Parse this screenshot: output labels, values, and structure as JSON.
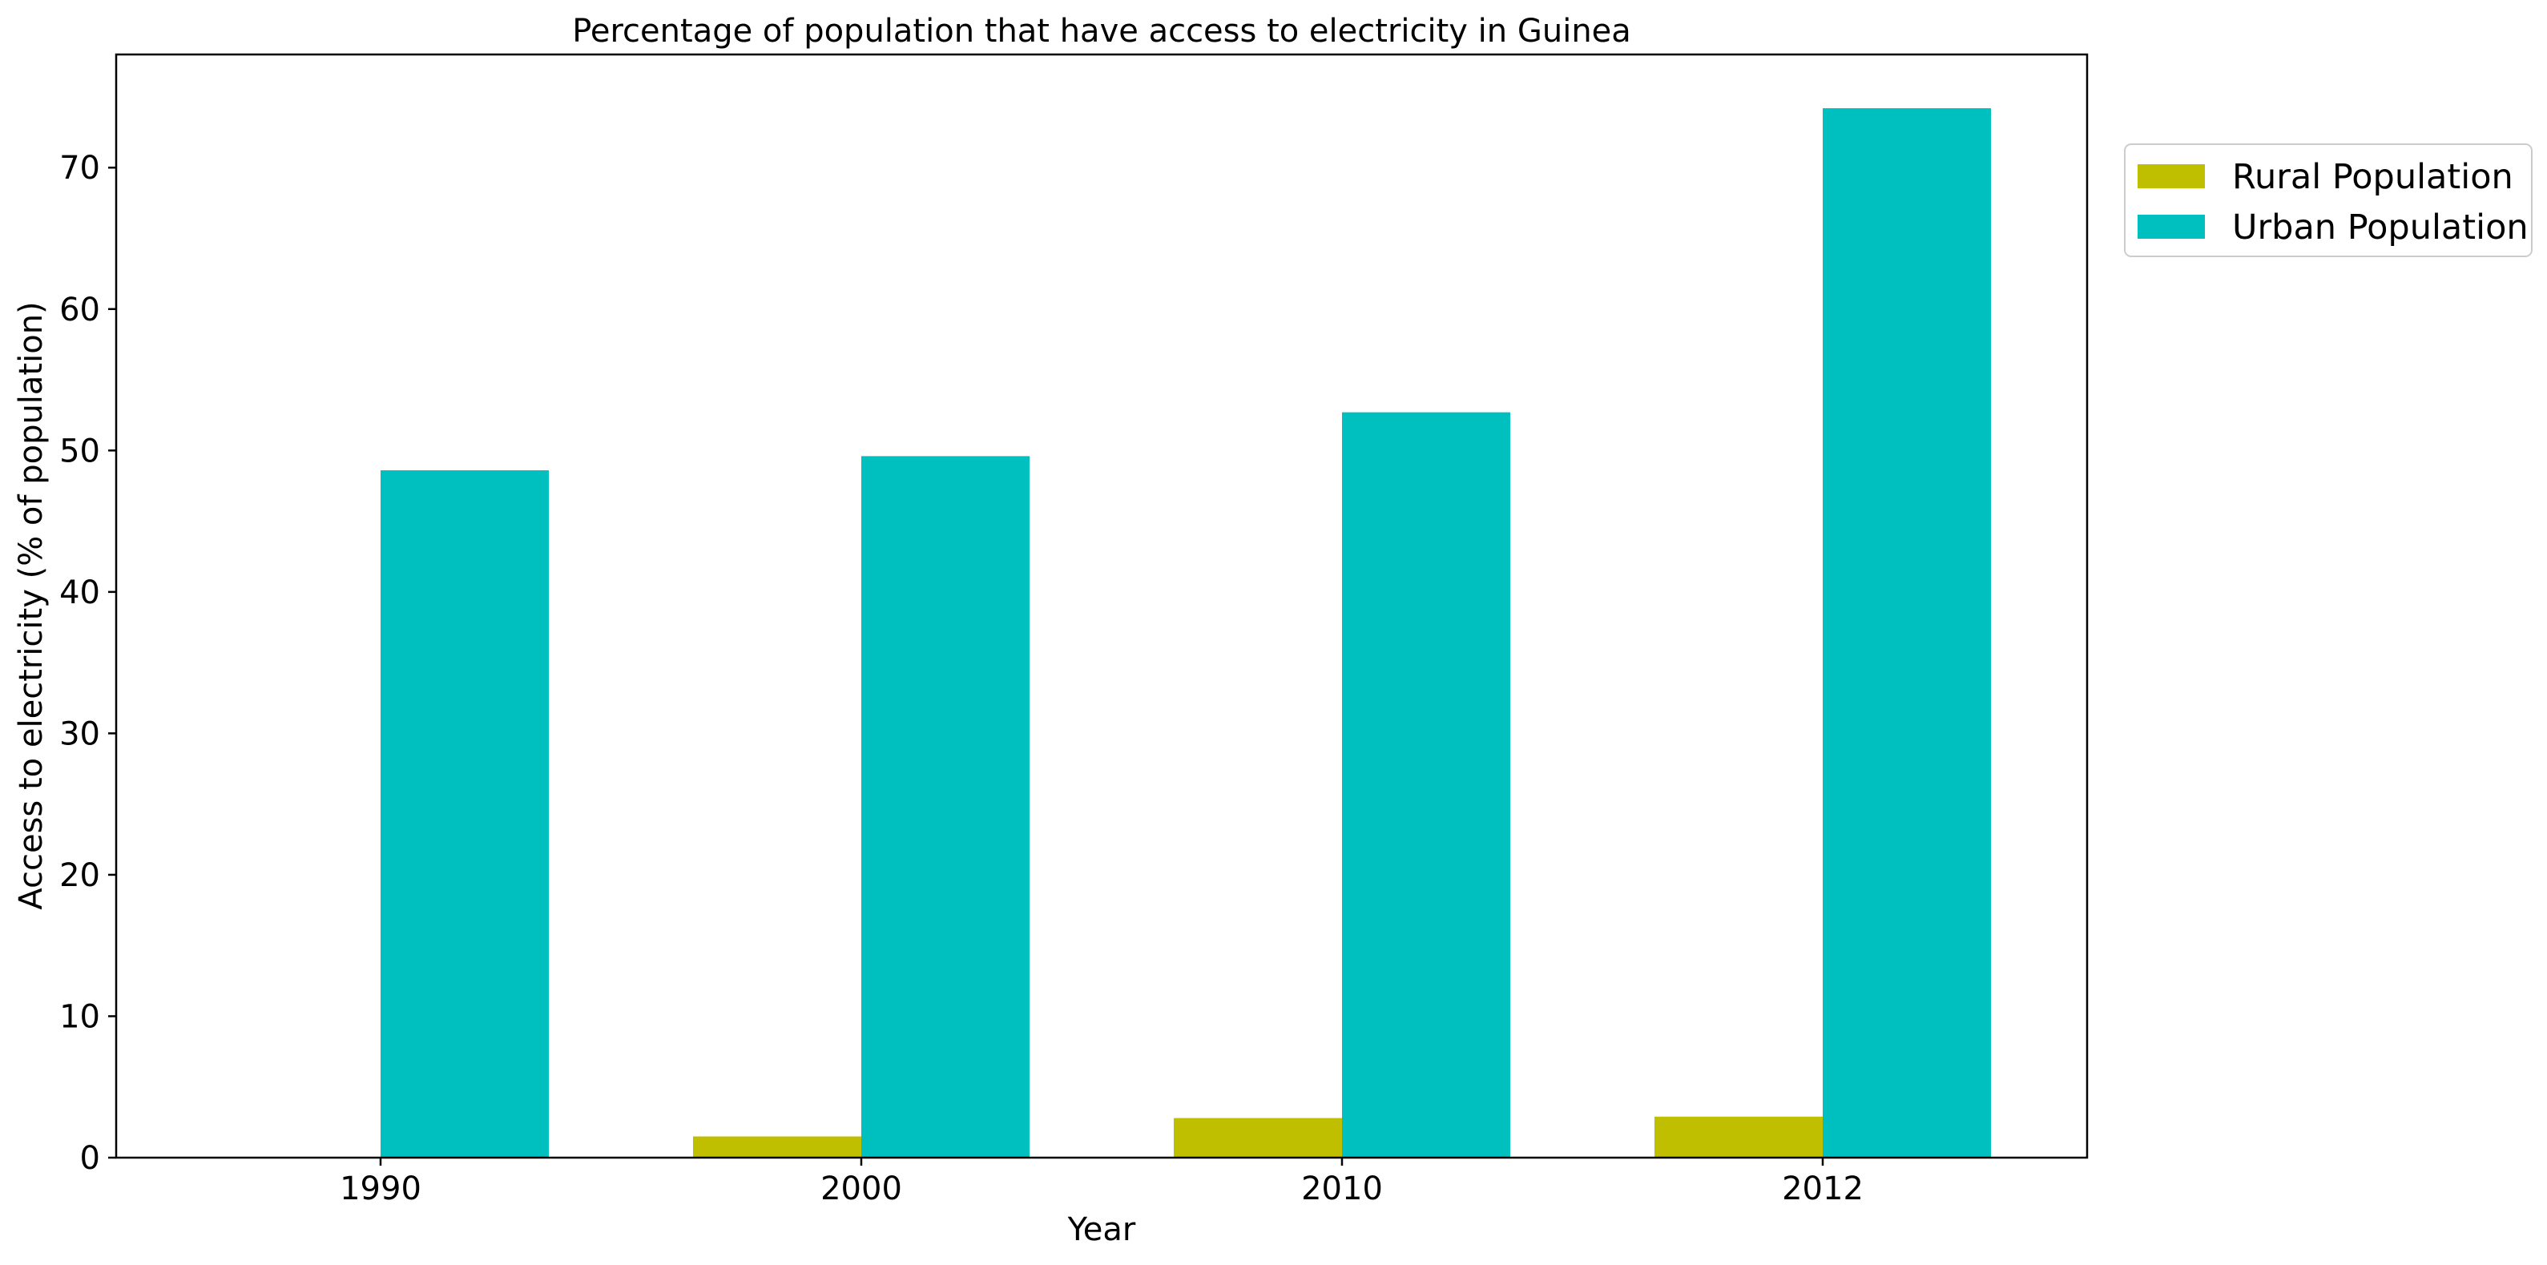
{
  "chart_data": {
    "type": "bar",
    "title": "Percentage of population that have access to electricity in Guinea",
    "xlabel": "Year",
    "ylabel": "Access to electricity (% of population)",
    "categories": [
      "1990",
      "2000",
      "2010",
      "2012"
    ],
    "series": [
      {
        "name": "Rural Population",
        "color": "#bfbf00",
        "values": [
          0.0,
          1.5,
          2.8,
          2.9
        ]
      },
      {
        "name": "Urban Population",
        "color": "#00bfbf",
        "values": [
          48.6,
          49.6,
          52.7,
          74.2
        ]
      }
    ],
    "ylim": [
      0,
      78
    ],
    "yticks": [
      0,
      10,
      20,
      30,
      40,
      50,
      60,
      70
    ],
    "grid": false,
    "legend_position": "outside top-right"
  }
}
